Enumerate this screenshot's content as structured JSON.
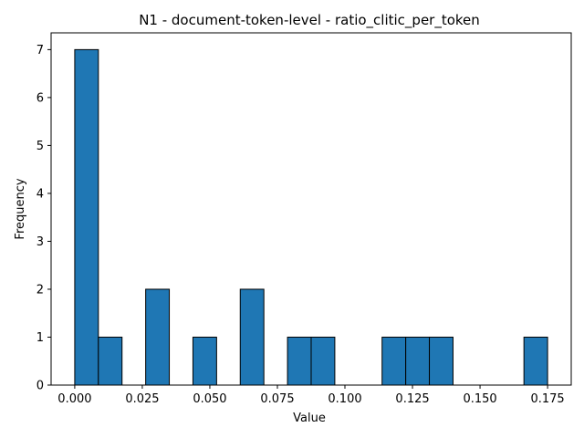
{
  "chart_data": {
    "type": "bar",
    "title": "N1 - document-token-level - ratio_clitic_per_token",
    "xlabel": "Value",
    "ylabel": "Frequency",
    "bin_start": 0.0,
    "bin_end": 0.175,
    "bins": [
      {
        "x0": 0.0,
        "x1": 0.00875,
        "count": 7
      },
      {
        "x0": 0.00875,
        "x1": 0.0175,
        "count": 1
      },
      {
        "x0": 0.0175,
        "x1": 0.02625,
        "count": 0
      },
      {
        "x0": 0.02625,
        "x1": 0.035,
        "count": 2
      },
      {
        "x0": 0.035,
        "x1": 0.04375,
        "count": 0
      },
      {
        "x0": 0.04375,
        "x1": 0.0525,
        "count": 1
      },
      {
        "x0": 0.0525,
        "x1": 0.06125,
        "count": 0
      },
      {
        "x0": 0.06125,
        "x1": 0.07,
        "count": 2
      },
      {
        "x0": 0.07,
        "x1": 0.07875,
        "count": 0
      },
      {
        "x0": 0.07875,
        "x1": 0.0875,
        "count": 1
      },
      {
        "x0": 0.0875,
        "x1": 0.09625,
        "count": 1
      },
      {
        "x0": 0.09625,
        "x1": 0.105,
        "count": 0
      },
      {
        "x0": 0.105,
        "x1": 0.11375,
        "count": 0
      },
      {
        "x0": 0.11375,
        "x1": 0.1225,
        "count": 1
      },
      {
        "x0": 0.1225,
        "x1": 0.13125,
        "count": 1
      },
      {
        "x0": 0.13125,
        "x1": 0.14,
        "count": 1
      },
      {
        "x0": 0.14,
        "x1": 0.14875,
        "count": 0
      },
      {
        "x0": 0.14875,
        "x1": 0.1575,
        "count": 0
      },
      {
        "x0": 0.1575,
        "x1": 0.16625,
        "count": 0
      },
      {
        "x0": 0.16625,
        "x1": 0.175,
        "count": 1
      }
    ],
    "xlim": [
      -0.00875,
      0.18375
    ],
    "ylim": [
      0,
      7.35
    ],
    "xticks": [
      {
        "value": 0.0,
        "label": "0.000"
      },
      {
        "value": 0.025,
        "label": "0.025"
      },
      {
        "value": 0.05,
        "label": "0.050"
      },
      {
        "value": 0.075,
        "label": "0.075"
      },
      {
        "value": 0.1,
        "label": "0.100"
      },
      {
        "value": 0.125,
        "label": "0.125"
      },
      {
        "value": 0.15,
        "label": "0.150"
      },
      {
        "value": 0.175,
        "label": "0.175"
      }
    ],
    "yticks": [
      {
        "value": 0,
        "label": "0"
      },
      {
        "value": 1,
        "label": "1"
      },
      {
        "value": 2,
        "label": "2"
      },
      {
        "value": 3,
        "label": "3"
      },
      {
        "value": 4,
        "label": "4"
      },
      {
        "value": 5,
        "label": "5"
      },
      {
        "value": 6,
        "label": "6"
      },
      {
        "value": 7,
        "label": "7"
      }
    ],
    "grid": false,
    "legend": "none",
    "bar_color": "#1f77b4",
    "bar_edge_color": "#000000"
  }
}
